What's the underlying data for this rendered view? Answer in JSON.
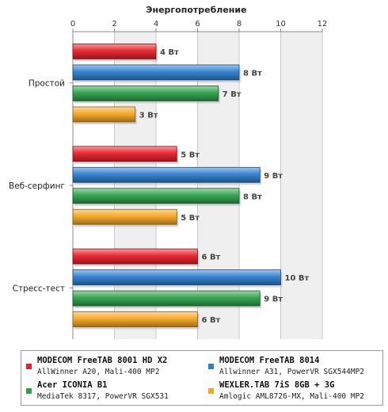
{
  "chart_data": {
    "type": "bar",
    "orientation": "horizontal",
    "title": "Энергопотребление",
    "categories": [
      "Простой",
      "Веб-серфинг",
      "Стресс-тест"
    ],
    "xlim": [
      0,
      12
    ],
    "xticks": [
      0,
      2,
      4,
      6,
      8,
      10,
      12
    ],
    "value_unit": "Вт",
    "grid": "alternating vertical bands",
    "legend_position": "bottom",
    "series": [
      {
        "name": "MODECOM FreeTAB 8001 HD X2",
        "spec": "AllWinner A20, Mali-400 MP2",
        "color": "#e8202a",
        "values": [
          4,
          5,
          6
        ]
      },
      {
        "name": "MODECOM FreeTAB 8014",
        "spec": "Allwinner A31, PowerVR SGX544MP2",
        "color": "#2f7fd0",
        "values": [
          8,
          9,
          10
        ]
      },
      {
        "name": "Acer ICONIA B1",
        "spec": "MediaTek 8317, PowerVR SGX531",
        "color": "#2ea14a",
        "values": [
          7,
          8,
          9
        ]
      },
      {
        "name": "WEXLER.TAB 7iS 8GB + 3G",
        "spec": "Amlogic AML8726-MX, Mali-400 MP2",
        "color": "#f5a623",
        "values": [
          3,
          5,
          6
        ]
      }
    ]
  }
}
